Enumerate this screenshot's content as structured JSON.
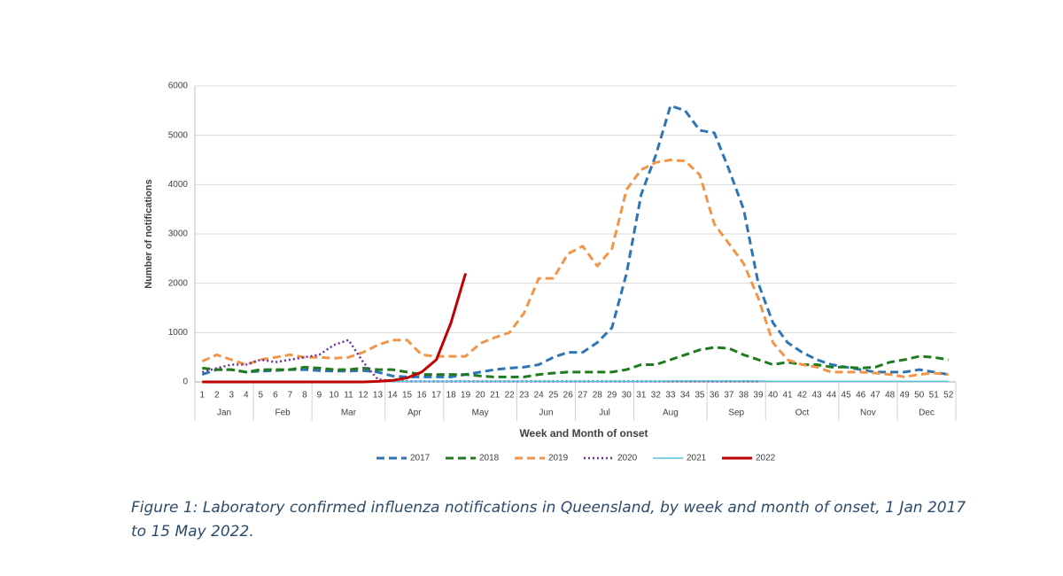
{
  "chart_data": {
    "type": "line",
    "y_label": "Number of notifications",
    "x_label": "Week and Month of onset",
    "categories": [
      "1",
      "2",
      "3",
      "4",
      "5",
      "6",
      "7",
      "8",
      "9",
      "10",
      "11",
      "12",
      "13",
      "14",
      "15",
      "16",
      "17",
      "18",
      "19",
      "20",
      "21",
      "22",
      "23",
      "24",
      "25",
      "26",
      "27",
      "28",
      "29",
      "30",
      "31",
      "32",
      "33",
      "34",
      "35",
      "36",
      "37",
      "38",
      "39",
      "40",
      "41",
      "42",
      "43",
      "44",
      "45",
      "46",
      "47",
      "48",
      "49",
      "50",
      "51",
      "52"
    ],
    "months": [
      {
        "name": "Jan",
        "weeks": 4
      },
      {
        "name": "Feb",
        "weeks": 4
      },
      {
        "name": "Mar",
        "weeks": 5
      },
      {
        "name": "Apr",
        "weeks": 4
      },
      {
        "name": "May",
        "weeks": 5
      },
      {
        "name": "Jun",
        "weeks": 4
      },
      {
        "name": "Jul",
        "weeks": 4
      },
      {
        "name": "Aug",
        "weeks": 5
      },
      {
        "name": "Sep",
        "weeks": 4
      },
      {
        "name": "Oct",
        "weeks": 5
      },
      {
        "name": "Nov",
        "weeks": 4
      },
      {
        "name": "Dec",
        "weeks": 4
      }
    ],
    "ylim": [
      0,
      6000
    ],
    "yticks": [
      0,
      1000,
      2000,
      3000,
      4000,
      5000,
      6000
    ],
    "grid": true,
    "legend": "bottom",
    "series": [
      {
        "name": "2017",
        "color": "#2e75b6",
        "dash": "dashed",
        "width": 3,
        "values": [
          150,
          250,
          250,
          200,
          220,
          230,
          250,
          250,
          230,
          220,
          220,
          230,
          200,
          120,
          100,
          100,
          100,
          100,
          150,
          200,
          250,
          280,
          300,
          350,
          500,
          600,
          600,
          800,
          1100,
          2200,
          3800,
          4600,
          5600,
          5500,
          5100,
          5050,
          4300,
          3500,
          2000,
          1200,
          800,
          600,
          450,
          350,
          300,
          250,
          200,
          200,
          200,
          250,
          200,
          150
        ]
      },
      {
        "name": "2018",
        "color": "#1e7b1e",
        "dash": "dashed",
        "width": 3,
        "values": [
          280,
          250,
          250,
          200,
          250,
          250,
          250,
          300,
          280,
          250,
          250,
          280,
          250,
          250,
          200,
          150,
          150,
          150,
          150,
          120,
          100,
          100,
          100,
          150,
          180,
          200,
          200,
          200,
          200,
          250,
          350,
          350,
          450,
          550,
          650,
          700,
          680,
          550,
          450,
          350,
          400,
          350,
          350,
          300,
          300,
          280,
          300,
          400,
          450,
          520,
          500,
          450
        ]
      },
      {
        "name": "2019",
        "color": "#f0954a",
        "dash": "dashed",
        "width": 3,
        "values": [
          420,
          550,
          450,
          350,
          450,
          500,
          550,
          500,
          500,
          480,
          500,
          600,
          750,
          850,
          850,
          550,
          520,
          520,
          520,
          780,
          900,
          1000,
          1400,
          2100,
          2100,
          2600,
          2750,
          2350,
          2700,
          3900,
          4300,
          4450,
          4500,
          4480,
          4200,
          3200,
          2800,
          2400,
          1700,
          800,
          450,
          350,
          300,
          200,
          200,
          200,
          180,
          150,
          100,
          150,
          180,
          150
        ]
      },
      {
        "name": "2020",
        "color": "#7030a0",
        "dash": "dotted",
        "width": 2.5,
        "values": [
          200,
          280,
          350,
          350,
          450,
          400,
          450,
          500,
          550,
          750,
          850,
          400,
          50,
          20,
          10,
          10,
          10,
          10,
          10,
          10,
          10,
          10,
          10,
          10,
          10,
          10,
          10,
          10,
          10,
          10,
          10,
          10,
          10,
          10,
          10,
          10,
          10,
          10,
          10,
          null,
          null,
          null,
          null,
          null,
          null,
          null,
          null,
          null,
          null,
          null,
          null,
          null
        ]
      },
      {
        "name": "2021",
        "color": "#5bc0de",
        "dash": "solid",
        "width": 1.5,
        "values": [
          10,
          10,
          10,
          10,
          10,
          10,
          10,
          10,
          10,
          10,
          10,
          10,
          10,
          10,
          10,
          10,
          10,
          10,
          10,
          10,
          10,
          10,
          10,
          10,
          10,
          10,
          10,
          10,
          10,
          10,
          10,
          10,
          20,
          20,
          20,
          20,
          20,
          20,
          20,
          10,
          10,
          10,
          10,
          10,
          10,
          10,
          10,
          10,
          10,
          10,
          10,
          10
        ]
      },
      {
        "name": "2022",
        "color": "#c00000",
        "dash": "solid",
        "width": 3,
        "values": [
          0,
          0,
          0,
          0,
          0,
          0,
          0,
          0,
          0,
          0,
          0,
          0,
          10,
          30,
          80,
          200,
          450,
          1200,
          2200,
          null,
          null,
          null,
          null,
          null,
          null,
          null,
          null,
          null,
          null,
          null,
          null,
          null,
          null,
          null,
          null,
          null,
          null,
          null,
          null,
          null,
          null,
          null,
          null,
          null,
          null,
          null,
          null,
          null,
          null,
          null,
          null,
          null
        ]
      }
    ]
  },
  "caption": [
    "Figure 1: Laboratory confirmed influenza notifications in Queensland, by week and month of onset, 1 Jan 2017",
    "to 15 May 2022."
  ]
}
